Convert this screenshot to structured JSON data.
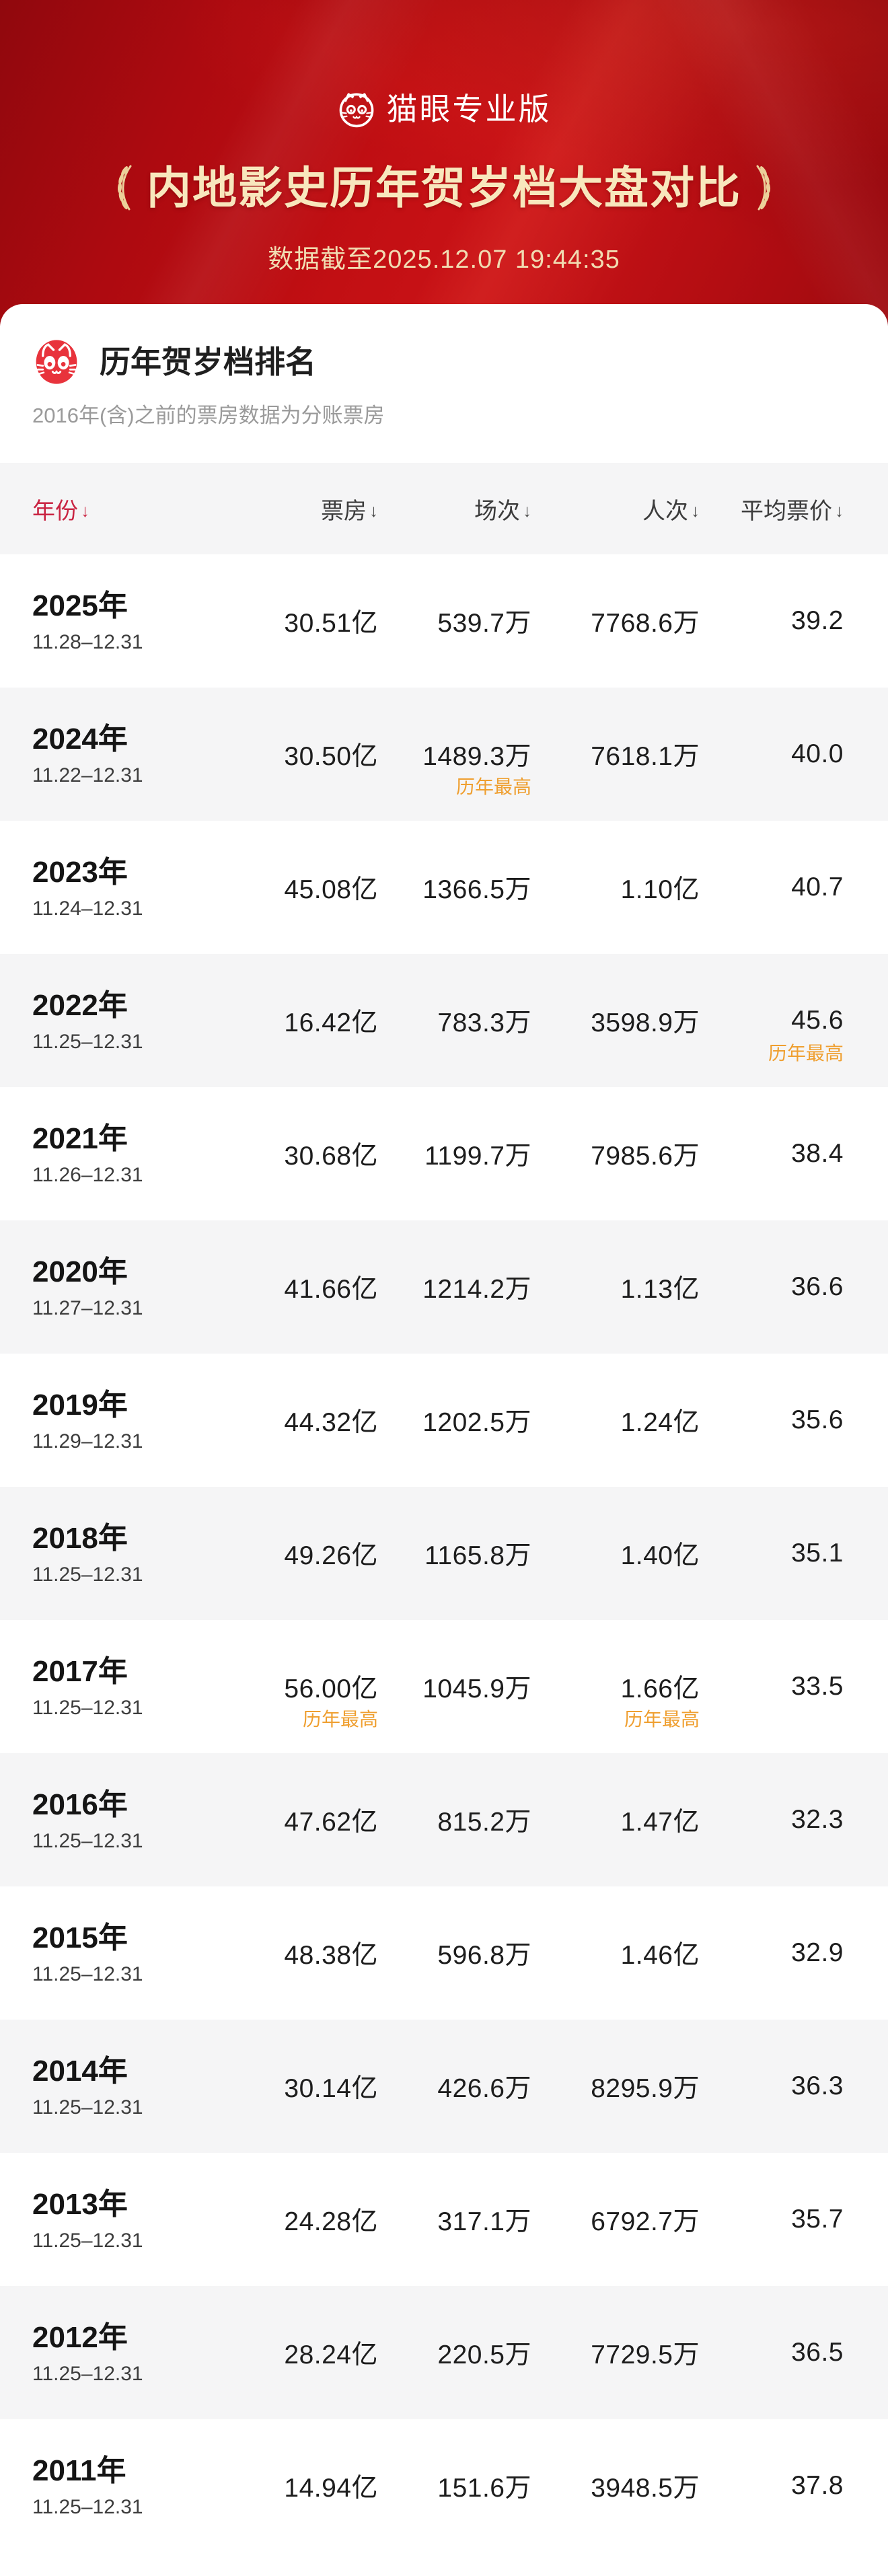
{
  "hero": {
    "brand": "猫眼专业版",
    "title": "内地影史历年贺岁档大盘对比",
    "timestamp": "数据截至2025.12.07 19:44:35"
  },
  "card": {
    "title": "历年贺岁档排名",
    "subtitle": "2016年(含)之前的票房数据为分账票房"
  },
  "table": {
    "sort_icon": "↓",
    "columns": [
      {
        "key": "year",
        "label": "年份"
      },
      {
        "key": "box_office",
        "label": "票房"
      },
      {
        "key": "sessions",
        "label": "场次"
      },
      {
        "key": "admissions",
        "label": "人次"
      },
      {
        "key": "avg_price",
        "label": "平均票价"
      }
    ],
    "highest_note": "历年最高",
    "rows": [
      {
        "year": "2025年",
        "dates": "11.28–12.31",
        "box_office": "30.51亿",
        "sessions": "539.7万",
        "admissions": "7768.6万",
        "avg_price": "39.2"
      },
      {
        "year": "2024年",
        "dates": "11.22–12.31",
        "box_office": "30.50亿",
        "sessions": "1489.3万",
        "sessions_note": "历年最高",
        "admissions": "7618.1万",
        "avg_price": "40.0"
      },
      {
        "year": "2023年",
        "dates": "11.24–12.31",
        "box_office": "45.08亿",
        "sessions": "1366.5万",
        "admissions": "1.10亿",
        "avg_price": "40.7"
      },
      {
        "year": "2022年",
        "dates": "11.25–12.31",
        "box_office": "16.42亿",
        "sessions": "783.3万",
        "admissions": "3598.9万",
        "avg_price": "45.6",
        "avg_price_note": "历年最高"
      },
      {
        "year": "2021年",
        "dates": "11.26–12.31",
        "box_office": "30.68亿",
        "sessions": "1199.7万",
        "admissions": "7985.6万",
        "avg_price": "38.4"
      },
      {
        "year": "2020年",
        "dates": "11.27–12.31",
        "box_office": "41.66亿",
        "sessions": "1214.2万",
        "admissions": "1.13亿",
        "avg_price": "36.6"
      },
      {
        "year": "2019年",
        "dates": "11.29–12.31",
        "box_office": "44.32亿",
        "sessions": "1202.5万",
        "admissions": "1.24亿",
        "avg_price": "35.6"
      },
      {
        "year": "2018年",
        "dates": "11.25–12.31",
        "box_office": "49.26亿",
        "sessions": "1165.8万",
        "admissions": "1.40亿",
        "avg_price": "35.1"
      },
      {
        "year": "2017年",
        "dates": "11.25–12.31",
        "box_office": "56.00亿",
        "box_office_note": "历年最高",
        "sessions": "1045.9万",
        "admissions": "1.66亿",
        "admissions_note": "历年最高",
        "avg_price": "33.5"
      },
      {
        "year": "2016年",
        "dates": "11.25–12.31",
        "box_office": "47.62亿",
        "sessions": "815.2万",
        "admissions": "1.47亿",
        "avg_price": "32.3"
      },
      {
        "year": "2015年",
        "dates": "11.25–12.31",
        "box_office": "48.38亿",
        "sessions": "596.8万",
        "admissions": "1.46亿",
        "avg_price": "32.9"
      },
      {
        "year": "2014年",
        "dates": "11.25–12.31",
        "box_office": "30.14亿",
        "sessions": "426.6万",
        "admissions": "8295.9万",
        "avg_price": "36.3"
      },
      {
        "year": "2013年",
        "dates": "11.25–12.31",
        "box_office": "24.28亿",
        "sessions": "317.1万",
        "admissions": "6792.7万",
        "avg_price": "35.7"
      },
      {
        "year": "2012年",
        "dates": "11.25–12.31",
        "box_office": "28.24亿",
        "sessions": "220.5万",
        "admissions": "7729.5万",
        "avg_price": "36.5"
      },
      {
        "year": "2011年",
        "dates": "11.25–12.31",
        "box_office": "14.94亿",
        "sessions": "151.6万",
        "admissions": "3948.5万",
        "avg_price": "37.8"
      }
    ]
  },
  "colors": {
    "header_red": "#c20f13",
    "gold_text": "#f8e7bd",
    "sorted_column_red": "#c92442",
    "highest_note_orange": "#ef9f30",
    "row_alt_gray": "#f5f5f6",
    "maoyan_logo_red": "#e8333c"
  }
}
